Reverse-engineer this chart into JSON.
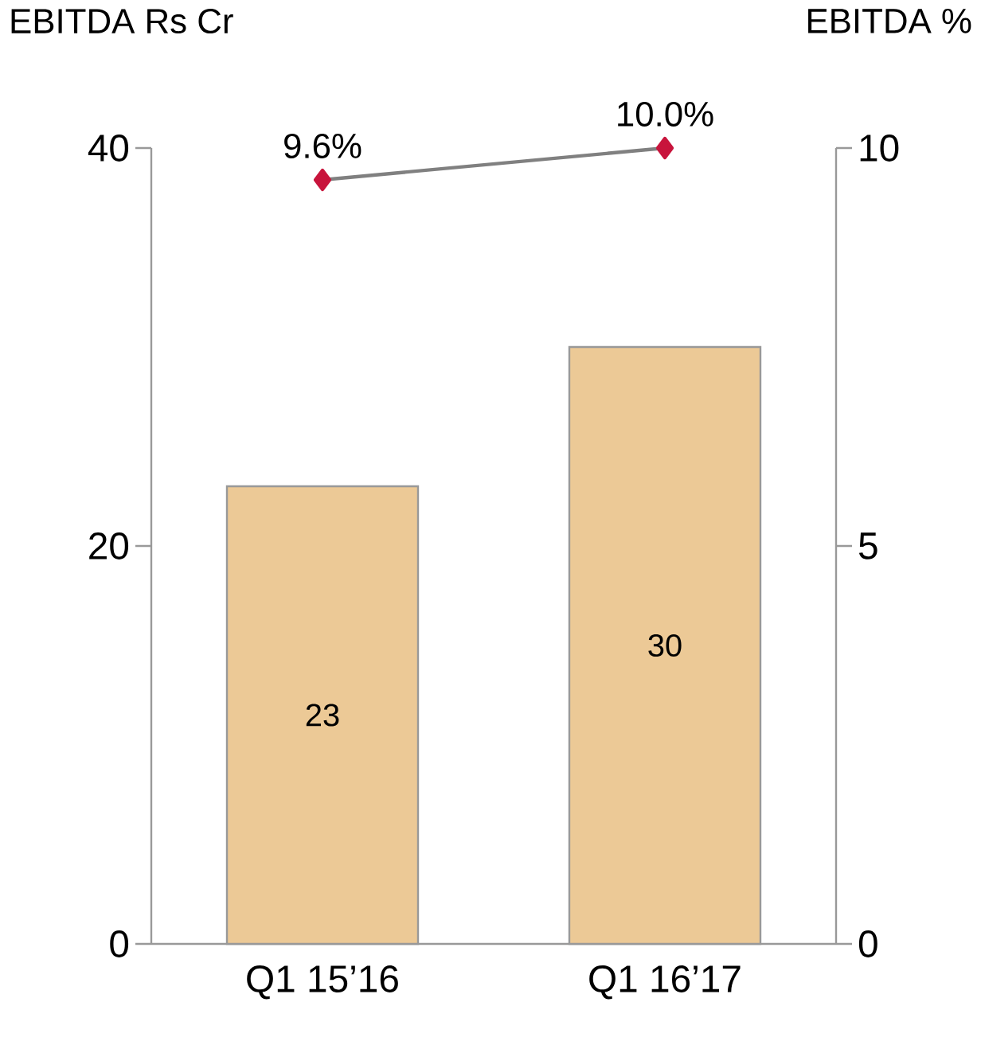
{
  "chart_data": {
    "type": "bar",
    "ylabel": "EBITDA Rs Cr",
    "y2label": "EBITDA %",
    "categories": [
      "Q1 15’16",
      "Q1 16’17"
    ],
    "series": [
      {
        "color": "#ecc996",
        "values": [
          23,
          30
        ],
        "value_labels": [
          "23",
          "30"
        ]
      },
      {
        "type": "line",
        "axis": "y2",
        "color": "#c8143c",
        "marker": "diamond",
        "values": [
          9.6,
          10.0
        ],
        "value_labels": [
          "9.6%",
          "10.0%"
        ]
      }
    ],
    "ylim": [
      0,
      40
    ],
    "yticks": [
      0,
      20,
      40
    ],
    "y2lim": [
      0,
      10
    ],
    "y2ticks": [
      0,
      5,
      10
    ]
  }
}
